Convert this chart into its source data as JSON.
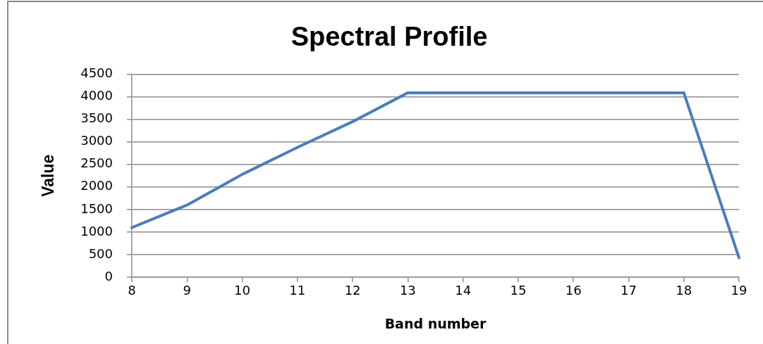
{
  "chart_data": {
    "type": "line",
    "title": "Spectral Profile",
    "xlabel": "Band number",
    "ylabel": "Value",
    "categories": [
      "8",
      "9",
      "10",
      "11",
      "12",
      "13",
      "14",
      "15",
      "16",
      "17",
      "18",
      "19"
    ],
    "series": [
      {
        "color": "#4a7ebb",
        "values": [
          1100,
          1600,
          2280,
          2880,
          3450,
          4090,
          4090,
          4090,
          4090,
          4090,
          4090,
          430
        ]
      }
    ],
    "ylim": [
      0,
      4500
    ],
    "yticks": [
      0,
      500,
      1000,
      1500,
      2000,
      2500,
      3000,
      3500,
      4000,
      4500
    ],
    "grid": "y",
    "marker": "none",
    "line_style": "solid"
  }
}
